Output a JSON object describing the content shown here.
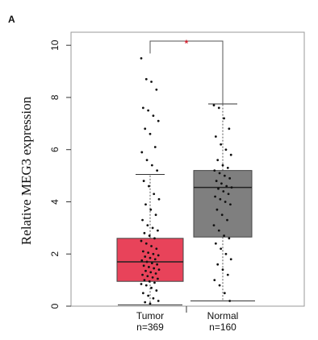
{
  "panel_label": "A",
  "chart_data": {
    "type": "box",
    "y_label": "Relative MEG3 expression",
    "categories": [
      "Tumor",
      "Normal"
    ],
    "n_labels": [
      "n=369",
      "n=160"
    ],
    "ylim": [
      0,
      10.5
    ],
    "yticks": [
      0,
      2,
      4,
      6,
      8,
      10
    ],
    "annotation": "*",
    "series": [
      {
        "name": "Tumor",
        "color": "#e8435a",
        "min": 0.05,
        "q1": 0.95,
        "median": 1.7,
        "q3": 2.6,
        "max": 5.05,
        "points": [
          9.5,
          8.7,
          8.6,
          8.3,
          7.6,
          7.5,
          7.3,
          7.1,
          6.8,
          6.6,
          6.1,
          5.9,
          5.6,
          5.4,
          5.2,
          4.8,
          4.6,
          4.3,
          4.1,
          3.9,
          3.7,
          3.5,
          3.3,
          3.1,
          3.0,
          2.9,
          2.8,
          2.7,
          2.6,
          2.5,
          2.4,
          2.3,
          2.2,
          2.1,
          2.05,
          2.0,
          1.95,
          1.9,
          1.85,
          1.8,
          1.75,
          1.7,
          1.65,
          1.6,
          1.55,
          1.5,
          1.45,
          1.4,
          1.35,
          1.3,
          1.25,
          1.2,
          1.15,
          1.1,
          1.05,
          1.0,
          0.95,
          0.9,
          0.85,
          0.8,
          0.7,
          0.6,
          0.5,
          0.4,
          0.3,
          0.2,
          0.15,
          0.1
        ]
      },
      {
        "name": "Normal",
        "color": "#7f7f7f",
        "min": 0.2,
        "q1": 2.65,
        "median": 4.55,
        "q3": 5.2,
        "max": 7.75,
        "points": [
          7.7,
          7.6,
          7.2,
          6.8,
          6.5,
          6.2,
          6.0,
          5.8,
          5.6,
          5.4,
          5.3,
          5.2,
          5.1,
          5.0,
          4.9,
          4.8,
          4.7,
          4.6,
          4.55,
          4.5,
          4.4,
          4.3,
          4.2,
          4.1,
          4.0,
          3.9,
          3.7,
          3.5,
          3.3,
          3.1,
          2.9,
          2.7,
          2.6,
          2.4,
          2.2,
          2.0,
          1.8,
          1.6,
          1.4,
          1.2,
          1.0,
          0.8,
          0.5,
          0.2
        ]
      }
    ]
  }
}
